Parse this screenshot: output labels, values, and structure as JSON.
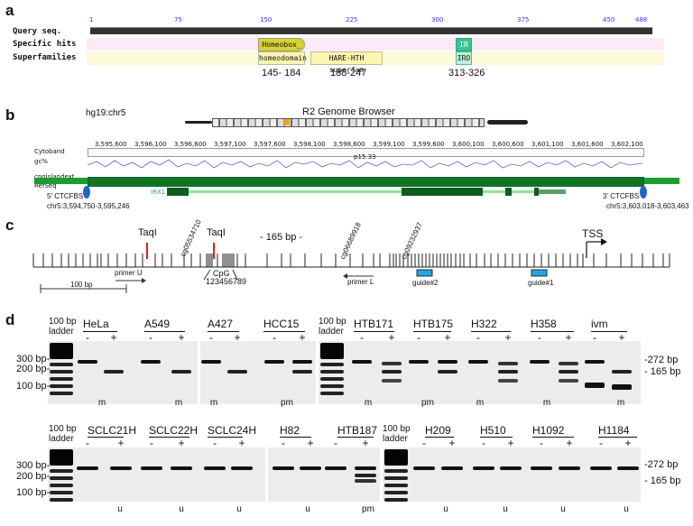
{
  "panels": {
    "a": "a",
    "b": "b",
    "c": "c",
    "d": "d"
  },
  "panel_a": {
    "ruler_ticks": [
      "1",
      "75",
      "150",
      "225",
      "300",
      "375",
      "450",
      "488"
    ],
    "rows": [
      "Query seq.",
      "Specific hits",
      "Superfamilies"
    ],
    "hits": {
      "homeobox": "Homeobox_",
      "ir": "IR",
      "homeodomain": "homeodomain",
      "hare": "HARE-HTH superfam",
      "iro": "IRO"
    },
    "ranges": [
      "145- 184",
      "188-247",
      "313-326"
    ]
  },
  "panel_b": {
    "coord": "hg19:chr5",
    "title": "R2 Genome Browser",
    "ruler": [
      "3,595,600",
      "3,596,100",
      "3,596,600",
      "3,597,100",
      "3,597,600",
      "3,598,100",
      "3,598,600",
      "3,599,100",
      "3,599,600",
      "3,600,100",
      "3,600,600",
      "3,601,100",
      "3,601,600",
      "3,602,100"
    ],
    "band": "p15.33",
    "tracks": [
      "Cytoband",
      "gc%",
      "cpgislandext",
      "RefSeq"
    ],
    "gene": "IRX1",
    "left_label": "5' CTCFBS",
    "left_pos": "chr5:3,594,750-3,595,246",
    "right_label": "3' CTCFBS",
    "right_pos": "chr5:3,603,018-3,603,463"
  },
  "panel_c": {
    "taq1": "TaqI",
    "taq2": "TaqI",
    "bp165": "- 165 bp -",
    "cg1": "cg05534710",
    "cg2": "cg06689918",
    "cg3": "cg09232937",
    "tss": "TSS",
    "scale": "100 bp",
    "primer_u": "primer U",
    "primer_l": "primer L",
    "cpg": "CpG",
    "cpg_nums": "123456789",
    "guide2": "guide#2",
    "guide1": "guide#1"
  },
  "panel_d": {
    "ladder": "100 bp ladder",
    "ladder_marks": [
      "300 bp-",
      "200 bp-",
      "100 bp-"
    ],
    "right_marks": [
      "-272 bp",
      "- 165 bp"
    ],
    "top_lines": [
      "HeLa",
      "A549",
      "A427",
      "HCC15",
      "HTB171",
      "HTB175",
      "H322",
      "H358",
      "ivm"
    ],
    "top_status": [
      "m",
      "m",
      "m",
      "pm",
      "m",
      "pm",
      "m",
      "m",
      "m"
    ],
    "bottom_lines": [
      "SCLC21H",
      "SCLC22H",
      "SCLC24H",
      "H82",
      "HTB187",
      "H209",
      "H510",
      "H1092",
      "H1184"
    ],
    "bottom_status": [
      "u",
      "u",
      "u",
      "u",
      "pm",
      "u",
      "u",
      "u",
      "u"
    ],
    "minus": "-",
    "plus": "+"
  }
}
